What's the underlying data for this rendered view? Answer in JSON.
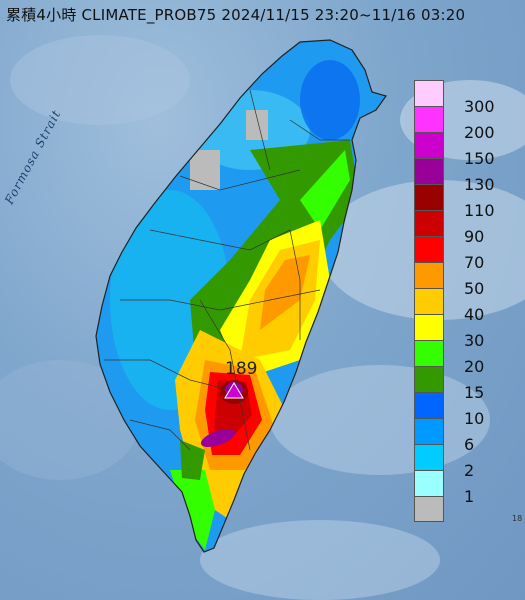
{
  "title": "累積4小時 CLIMATE_PROB75 2024/11/15 23:20~11/16 03:20",
  "sea_label": "Formosa Strait",
  "max_value": "189",
  "edge_mark": "18",
  "legend": [
    {
      "label": "300",
      "color": "#ffccff"
    },
    {
      "label": "200",
      "color": "#ff33ff"
    },
    {
      "label": "150",
      "color": "#cc00cc"
    },
    {
      "label": "130",
      "color": "#990099"
    },
    {
      "label": "110",
      "color": "#990000"
    },
    {
      "label": "90",
      "color": "#cc0000"
    },
    {
      "label": "70",
      "color": "#ff0000"
    },
    {
      "label": "50",
      "color": "#ff9900"
    },
    {
      "label": "40",
      "color": "#ffcc00"
    },
    {
      "label": "30",
      "color": "#ffff00"
    },
    {
      "label": "20",
      "color": "#33ff00"
    },
    {
      "label": "15",
      "color": "#339900"
    },
    {
      "label": "10",
      "color": "#0066ff"
    },
    {
      "label": "6",
      "color": "#0099ff"
    },
    {
      "label": "2",
      "color": "#00ccff"
    },
    {
      "label": "1",
      "color": "#99ffff"
    },
    {
      "label": "",
      "color": "#bbbbbb"
    }
  ]
}
